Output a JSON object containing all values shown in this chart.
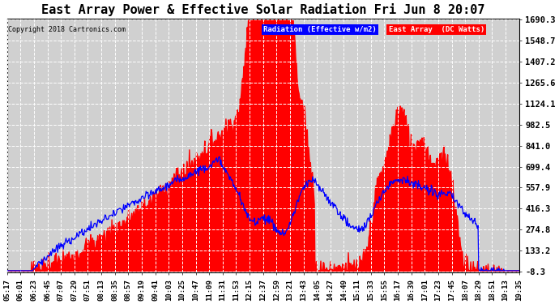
{
  "title": "East Array Power & Effective Solar Radiation Fri Jun 8 20:07",
  "copyright": "Copyright 2018 Cartronics.com",
  "legend_labels": [
    "Radiation (Effective w/m2)",
    "East Array  (DC Watts)"
  ],
  "legend_colors": [
    "blue",
    "red"
  ],
  "yticks": [
    1690.3,
    1548.7,
    1407.2,
    1265.6,
    1124.1,
    982.5,
    841.0,
    699.4,
    557.9,
    416.3,
    274.8,
    133.2,
    -8.3
  ],
  "ymin": -8.3,
  "ymax": 1690.3,
  "background_color": "#ffffff",
  "plot_bg_color": "#d0d0d0",
  "grid_color": "#ffffff",
  "x_tick_labels": [
    "05:17",
    "06:01",
    "06:23",
    "06:45",
    "07:07",
    "07:29",
    "07:51",
    "08:13",
    "08:35",
    "08:57",
    "09:19",
    "09:41",
    "10:03",
    "10:25",
    "10:47",
    "11:09",
    "11:31",
    "11:53",
    "12:15",
    "12:37",
    "12:59",
    "13:21",
    "13:43",
    "14:05",
    "14:27",
    "14:49",
    "15:11",
    "15:33",
    "15:55",
    "16:17",
    "16:39",
    "17:01",
    "17:23",
    "17:45",
    "18:07",
    "18:29",
    "18:51",
    "19:13",
    "19:35"
  ],
  "title_fontsize": 11,
  "label_fontsize": 6.5,
  "axis_fontsize": 7.5
}
